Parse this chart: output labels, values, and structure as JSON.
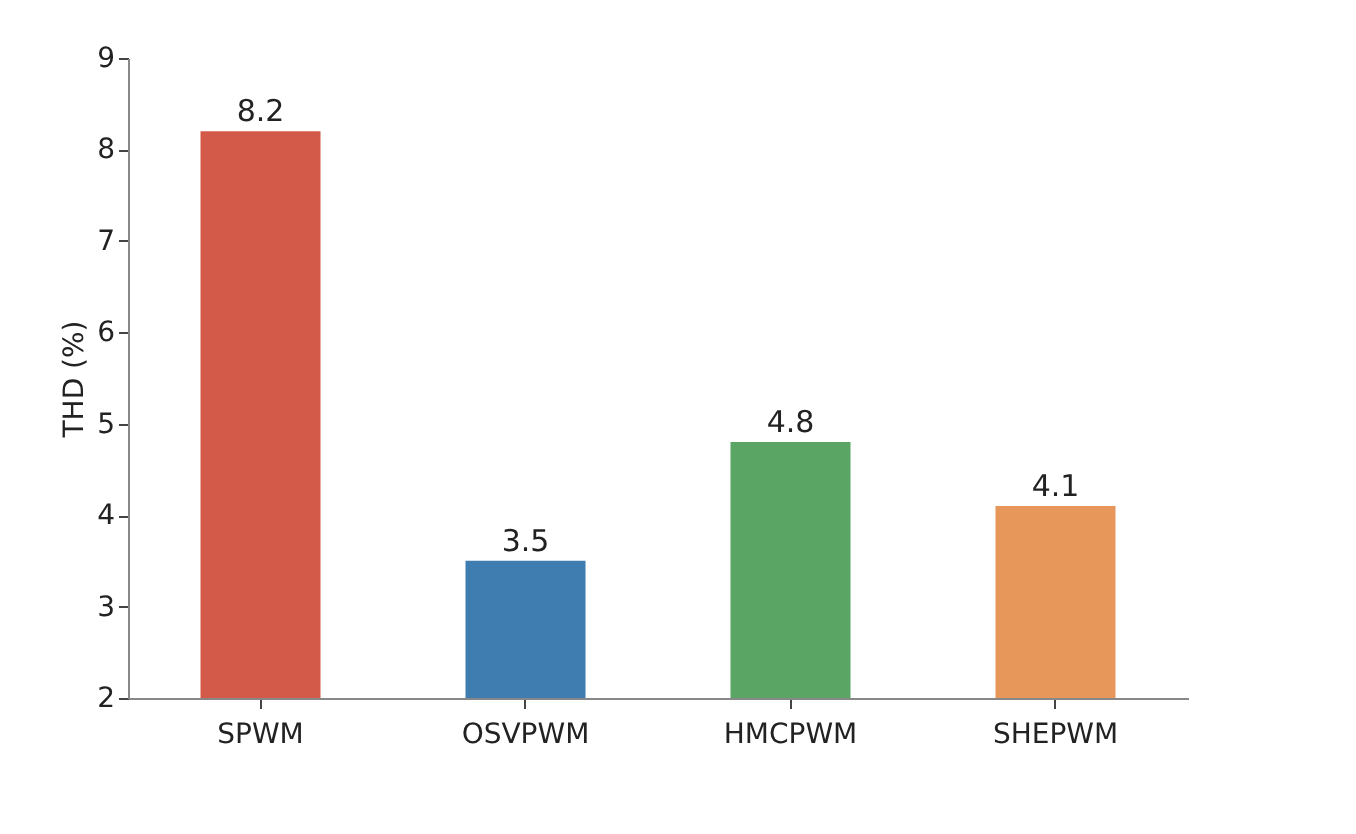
{
  "chart_data": {
    "type": "bar",
    "ylabel": "THD (%)",
    "categories": [
      "SPWM",
      "OSVPWM",
      "HMCPWM",
      "SHEPWM"
    ],
    "values": [
      8.2,
      3.5,
      4.8,
      4.1
    ],
    "data_labels": true,
    "colors": [
      "#d35a48",
      "#3f7caf",
      "#5aa464",
      "#e8975a"
    ],
    "ylim": [
      2,
      9
    ],
    "yticks": [
      2,
      3,
      4,
      5,
      6,
      7,
      8,
      9
    ]
  }
}
